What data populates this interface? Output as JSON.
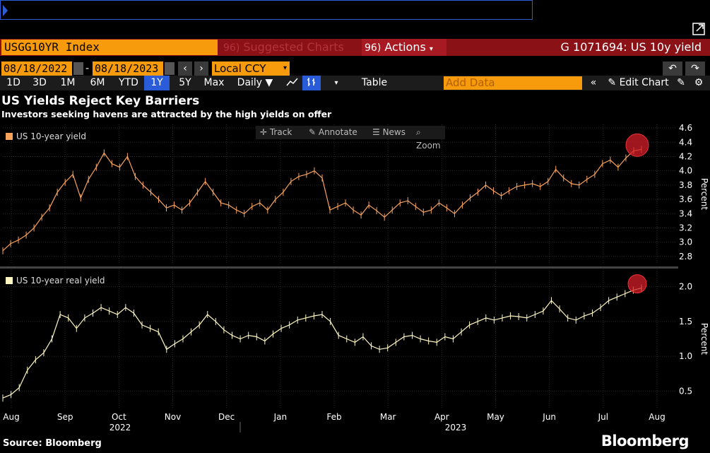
{
  "toolbar": {
    "ticker": "USGG10YR Index",
    "suggested": "Suggested Charts",
    "actions": "Actions",
    "actions_prefix": "96)",
    "chart_info": "G 1071694: US 10y yield",
    "start_date": "08/18/2022",
    "end_date": "08/18/2023",
    "currency": "Local CCY",
    "periods": [
      "1D",
      "3D",
      "1M",
      "6M",
      "YTD",
      "1Y",
      "5Y",
      "Max"
    ],
    "selected_period": "1Y",
    "frequency": "Daily",
    "table": "Table",
    "add_data_placeholder": "Add Data",
    "edit_chart": "Edit Chart",
    "separator": "-"
  },
  "headline": "US Yields Reject Key Barriers",
  "subheadline": "Investors seeking havens are attracted by the high yields on offer",
  "chart_tools": [
    "Track",
    "Annotate",
    "News",
    "Zoom"
  ],
  "source": "Source: Bloomberg",
  "brand": "Bloomberg",
  "colors": {
    "accent": "#f79a0b",
    "title_bar": "#8a1217",
    "selection": "#2a5bd8",
    "series1": "#f7a35c",
    "series2": "#fff7c2",
    "highlight": "#d41e28"
  },
  "chart_data": [
    {
      "type": "line",
      "legend": "US 10-year yield",
      "ylabel": "Percent",
      "ylim": [
        2.7,
        4.65
      ],
      "yticks": [
        2.8,
        3.0,
        3.2,
        3.4,
        3.6,
        3.8,
        4.0,
        4.2,
        4.4,
        4.6
      ],
      "series": [
        {
          "name": "US 10-year yield",
          "values": [
            2.88,
            2.98,
            3.03,
            3.1,
            3.2,
            3.35,
            3.48,
            3.7,
            3.84,
            3.95,
            3.62,
            3.88,
            4.05,
            4.25,
            4.1,
            4.05,
            4.2,
            3.92,
            3.8,
            3.7,
            3.6,
            3.48,
            3.52,
            3.45,
            3.55,
            3.7,
            3.85,
            3.7,
            3.55,
            3.52,
            3.45,
            3.4,
            3.5,
            3.55,
            3.45,
            3.6,
            3.7,
            3.85,
            3.92,
            3.95,
            4.0,
            3.9,
            3.45,
            3.5,
            3.55,
            3.45,
            3.38,
            3.52,
            3.44,
            3.35,
            3.45,
            3.55,
            3.58,
            3.5,
            3.42,
            3.45,
            3.55,
            3.48,
            3.4,
            3.52,
            3.62,
            3.7,
            3.8,
            3.72,
            3.65,
            3.72,
            3.78,
            3.8,
            3.82,
            3.78,
            3.85,
            4.02,
            3.9,
            3.82,
            3.8,
            3.88,
            3.95,
            4.1,
            4.15,
            4.05,
            4.18,
            4.28,
            4.3
          ]
        }
      ]
    },
    {
      "type": "line",
      "legend": "US 10-year real yield",
      "ylabel": "Percent",
      "ylim": [
        0.25,
        2.25
      ],
      "yticks": [
        0.5,
        1.0,
        1.5,
        2.0
      ],
      "series": [
        {
          "name": "US 10-year real yield",
          "values": [
            0.4,
            0.45,
            0.55,
            0.8,
            0.95,
            1.05,
            1.25,
            1.6,
            1.55,
            1.4,
            1.55,
            1.62,
            1.7,
            1.65,
            1.6,
            1.7,
            1.62,
            1.45,
            1.4,
            1.35,
            1.1,
            1.18,
            1.25,
            1.35,
            1.45,
            1.6,
            1.5,
            1.38,
            1.3,
            1.25,
            1.3,
            1.28,
            1.22,
            1.32,
            1.4,
            1.45,
            1.52,
            1.55,
            1.58,
            1.6,
            1.5,
            1.3,
            1.25,
            1.2,
            1.28,
            1.15,
            1.1,
            1.12,
            1.2,
            1.28,
            1.3,
            1.25,
            1.22,
            1.2,
            1.28,
            1.25,
            1.35,
            1.45,
            1.5,
            1.55,
            1.52,
            1.55,
            1.58,
            1.57,
            1.55,
            1.6,
            1.65,
            1.8,
            1.68,
            1.55,
            1.52,
            1.58,
            1.62,
            1.7,
            1.8,
            1.85,
            1.9,
            1.95,
            1.98
          ]
        }
      ]
    }
  ],
  "x_axis": {
    "months": [
      "Aug",
      "Sep",
      "Oct",
      "Nov",
      "Dec",
      "Jan",
      "Feb",
      "Mar",
      "Apr",
      "May",
      "Jun",
      "Jul",
      "Aug"
    ],
    "years": [
      "2022",
      "2023"
    ]
  }
}
